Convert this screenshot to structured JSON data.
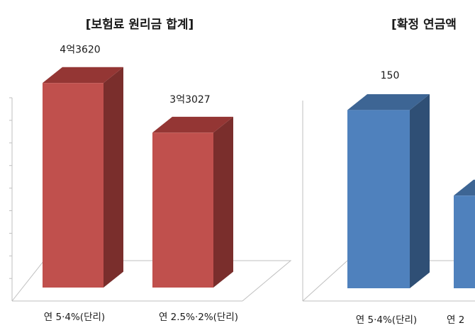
{
  "chart_data": [
    {
      "type": "bar",
      "title": "[보험료 원리금 합계]",
      "categories": [
        "연 5·4%(단리)",
        "연 2.5%·2%(단리)"
      ],
      "values": [
        43620,
        33027
      ],
      "data_labels": [
        "4억3620",
        "3억3027"
      ],
      "xlabel": "",
      "ylabel": "",
      "ylim": [
        0,
        45000
      ],
      "grid": false,
      "bar_color": "#c0504d",
      "bar_side_color": "#7a2e2c",
      "bar_top_color": "#943634"
    },
    {
      "type": "bar",
      "title": "[확정 연금액",
      "categories": [
        "연 5·4%(단리)",
        "연 2"
      ],
      "values": [
        150,
        78
      ],
      "data_labels": [
        "150",
        ""
      ],
      "xlabel": "",
      "ylabel": "",
      "ylim": [
        0,
        155
      ],
      "grid": false,
      "bar_color": "#4f81bd",
      "bar_side_color": "#2f4f75",
      "bar_top_color": "#3d6594"
    }
  ]
}
